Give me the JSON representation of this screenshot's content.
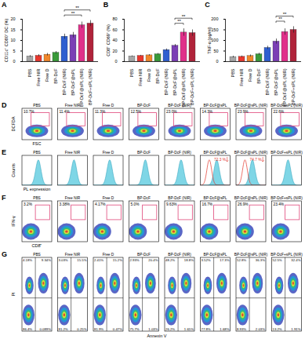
{
  "chart_data": [
    {
      "panel": "A",
      "type": "bar",
      "categories": [
        "PBS",
        "Free NIR",
        "Free D",
        "BP-DcF",
        "BP-DcF (NIR)",
        "BP-DcF@sPL",
        "BP-DcF@sPL (NIR)",
        "BP-DcF+sPL (NIR)"
      ],
      "colors": [
        "#a6a6a6",
        "#e8382f",
        "#f0872b",
        "#3a9a3a",
        "#2f5fd0",
        "#7b3fb5",
        "#e0308a",
        "#b0233a"
      ],
      "values": [
        2.5,
        2.8,
        3.3,
        4.2,
        11.8,
        12.5,
        17.2,
        18.0
      ],
      "errors": [
        0.4,
        0.5,
        0.6,
        0.6,
        1.2,
        1.3,
        1.5,
        1.4
      ],
      "y_label": "CD11c⁺ CD80⁺ DC (%)",
      "ylim": [
        0,
        20
      ],
      "yticks": [
        0,
        5,
        10,
        15,
        20
      ],
      "significance": [
        {
          "pair": [
            "BP-DcF (NIR)",
            "BP-DcF@sPL (NIR)"
          ],
          "label": "**"
        },
        {
          "pair": [
            "BP-DcF (NIR)",
            "BP-DcF+sPL (NIR)"
          ],
          "label": "**"
        }
      ]
    },
    {
      "panel": "B",
      "type": "bar",
      "categories": [
        "PBS",
        "Free NIR",
        "Free D",
        "BP-DcF",
        "BP-DcF (NIR)",
        "BP-DcF@sPL",
        "BP-DcF@sPL (NIR)",
        "BP-DcF+sPL (NIR)"
      ],
      "colors": [
        "#a6a6a6",
        "#e8382f",
        "#f0872b",
        "#3a9a3a",
        "#2f5fd0",
        "#7b3fb5",
        "#e0308a",
        "#b0233a"
      ],
      "values": [
        10,
        11,
        12,
        14,
        22,
        30,
        55,
        54
      ],
      "errors": [
        1,
        1,
        1.2,
        1.5,
        2,
        2.5,
        7,
        6
      ],
      "y_label": "CD8⁺ CD69⁺ (%)",
      "ylim": [
        0,
        80
      ],
      "yticks": [
        0,
        20,
        40,
        60,
        80
      ],
      "significance": [
        {
          "pair": [
            "BP-DcF@sPL",
            "BP-DcF@sPL (NIR)"
          ],
          "label": "**"
        },
        {
          "pair": [
            "BP-DcF@sPL",
            "BP-DcF+sPL (NIR)"
          ],
          "label": "**"
        }
      ]
    },
    {
      "panel": "C",
      "type": "bar",
      "categories": [
        "PBS",
        "Free NIR",
        "Free D",
        "BP-DcF",
        "BP-DcF (NIR)",
        "BP-DcF@sPL",
        "BP-DcF@sPL (NIR)",
        "BP-DcF+sPL (NIR)"
      ],
      "colors": [
        "#a6a6a6",
        "#e8382f",
        "#f0872b",
        "#3a9a3a",
        "#2f5fd0",
        "#7b3fb5",
        "#e0308a",
        "#b0233a"
      ],
      "values": [
        22,
        23,
        27,
        35,
        65,
        95,
        140,
        150
      ],
      "errors": [
        4,
        4,
        5,
        5,
        8,
        12,
        15,
        15
      ],
      "y_label": "TNF-α (pg/ml)",
      "ylim": [
        0,
        200
      ],
      "yticks": [
        0,
        50,
        100,
        150,
        200
      ],
      "significance": [
        {
          "pair": [
            "BP-DcF@sPL",
            "BP-DcF@sPL (NIR)"
          ],
          "label": "**"
        },
        {
          "pair": [
            "BP-DcF@sPL",
            "BP-DcF+sPL (NIR)"
          ],
          "label": "**"
        }
      ]
    }
  ],
  "groups": [
    "PBS",
    "Free NIR",
    "Free D",
    "BP-DcF",
    "BP-DcF (NIR)",
    "BP-DcF@sPL",
    "BP-DcF@sPL (NIR)",
    "BP-DcF+sPL (NIR)"
  ],
  "panels": [
    {
      "panel": "D",
      "type": "flow_gate",
      "x_label": "FSC",
      "y_label": "DCFDA",
      "gate_labels": [
        "10.7%",
        "11.4%",
        "11.3%",
        "12.5%",
        "23.0%",
        "14.3%",
        "23.9%",
        "22.6%"
      ]
    },
    {
      "panel": "E",
      "type": "histogram",
      "x_label": "PL expression",
      "y_label": "Counts",
      "annotations": [
        null,
        null,
        null,
        null,
        null,
        "72.3 %",
        "74.7 %",
        null
      ]
    },
    {
      "panel": "F",
      "type": "flow_gate",
      "x_label": "CD8⁺",
      "y_label": "IFN-γ",
      "gate_labels": [
        "3.2%",
        "3.38%",
        "4.17%",
        "5.0%",
        "9.63%",
        "16.7%",
        "26.9%",
        "23.4%"
      ]
    },
    {
      "panel": "G",
      "type": "flow_quadrant",
      "x_label": "Annexin V",
      "y_label": "PI",
      "quadrant_labels": [
        [
          "4.18%",
          "9.34%",
          "86.4%",
          "0.089%"
        ],
        [
          "3.03%",
          "15.5%",
          "81.2%",
          "0.25%"
        ],
        [
          "2.41%",
          "15.2%",
          "81.9%",
          "0.47%"
        ],
        [
          "2.93%",
          "20.4%",
          "75.7%",
          "1.03%"
        ],
        [
          "48.2%",
          "18.8%",
          "26.2%",
          "1.65%"
        ],
        [
          "3.52%",
          "17.3%",
          "77.8%",
          "1.68%"
        ],
        [
          "52.8%",
          "36.3%",
          "8.93%",
          "2.03%"
        ],
        [
          "52.5%",
          "32.4%",
          "13.2%",
          "1.91%"
        ]
      ]
    }
  ]
}
